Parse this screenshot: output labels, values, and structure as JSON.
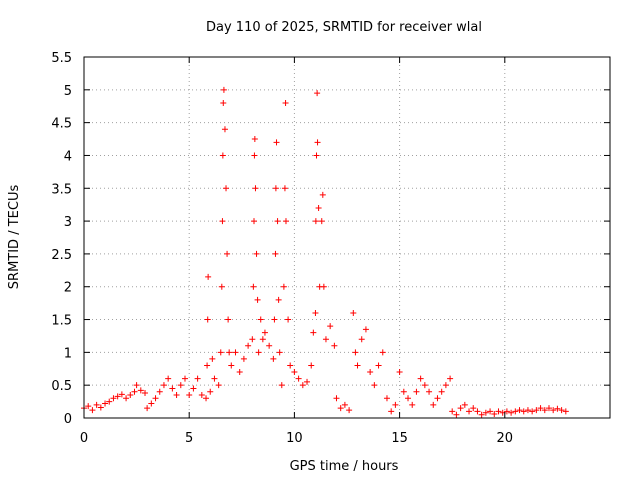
{
  "chart_data": {
    "type": "scatter",
    "title": "Day 110 of 2025, SRMTID for receiver wlal",
    "xlabel": "GPS time / hours",
    "ylabel": "SRMTID / TECUs",
    "xlim": [
      0,
      25
    ],
    "ylim": [
      0,
      5.5
    ],
    "x_ticks": [
      0,
      5,
      10,
      15,
      20
    ],
    "x_tick_labels": [
      "0",
      "5",
      "10",
      "15",
      "20"
    ],
    "y_ticks": [
      0,
      0.5,
      1,
      1.5,
      2,
      2.5,
      3,
      3.5,
      4,
      4.5,
      5,
      5.5
    ],
    "y_tick_labels": [
      "0",
      "0.5",
      "1",
      "1.5",
      "2",
      "2.5",
      "3",
      "3.5",
      "4",
      "4.5",
      "5",
      "5.5"
    ],
    "grid": true,
    "marker": "+",
    "series": [
      {
        "name": "SRMTID",
        "color": "#ff0000",
        "points": [
          [
            0.0,
            0.15
          ],
          [
            0.2,
            0.18
          ],
          [
            0.4,
            0.12
          ],
          [
            0.6,
            0.2
          ],
          [
            0.8,
            0.16
          ],
          [
            1.0,
            0.22
          ],
          [
            1.2,
            0.25
          ],
          [
            1.4,
            0.3
          ],
          [
            1.6,
            0.33
          ],
          [
            1.8,
            0.36
          ],
          [
            2.0,
            0.3
          ],
          [
            2.2,
            0.35
          ],
          [
            2.4,
            0.4
          ],
          [
            2.5,
            0.5
          ],
          [
            2.7,
            0.42
          ],
          [
            2.9,
            0.38
          ],
          [
            3.0,
            0.15
          ],
          [
            3.2,
            0.22
          ],
          [
            3.4,
            0.3
          ],
          [
            3.6,
            0.4
          ],
          [
            3.8,
            0.5
          ],
          [
            4.0,
            0.6
          ],
          [
            4.2,
            0.45
          ],
          [
            4.4,
            0.35
          ],
          [
            4.6,
            0.5
          ],
          [
            4.8,
            0.6
          ],
          [
            5.0,
            0.35
          ],
          [
            5.2,
            0.45
          ],
          [
            5.4,
            0.6
          ],
          [
            5.6,
            0.35
          ],
          [
            5.8,
            0.3
          ],
          [
            5.85,
            0.8
          ],
          [
            5.88,
            1.5
          ],
          [
            5.9,
            2.15
          ],
          [
            6.0,
            0.4
          ],
          [
            6.1,
            0.9
          ],
          [
            6.2,
            0.6
          ],
          [
            6.4,
            0.5
          ],
          [
            6.5,
            1.0
          ],
          [
            6.55,
            2.0
          ],
          [
            6.58,
            3.0
          ],
          [
            6.6,
            4.0
          ],
          [
            6.62,
            4.8
          ],
          [
            6.65,
            5.0
          ],
          [
            6.7,
            4.4
          ],
          [
            6.75,
            3.5
          ],
          [
            6.8,
            2.5
          ],
          [
            6.85,
            1.5
          ],
          [
            6.9,
            1.0
          ],
          [
            7.0,
            0.8
          ],
          [
            7.2,
            1.0
          ],
          [
            7.4,
            0.7
          ],
          [
            7.6,
            0.9
          ],
          [
            7.8,
            1.1
          ],
          [
            8.0,
            1.2
          ],
          [
            8.05,
            2.0
          ],
          [
            8.08,
            3.0
          ],
          [
            8.1,
            4.0
          ],
          [
            8.12,
            4.25
          ],
          [
            8.15,
            3.5
          ],
          [
            8.2,
            2.5
          ],
          [
            8.25,
            1.8
          ],
          [
            8.3,
            1.0
          ],
          [
            8.4,
            1.5
          ],
          [
            8.5,
            1.2
          ],
          [
            8.6,
            1.3
          ],
          [
            8.8,
            1.1
          ],
          [
            9.0,
            0.9
          ],
          [
            9.05,
            1.5
          ],
          [
            9.1,
            2.5
          ],
          [
            9.12,
            3.5
          ],
          [
            9.15,
            4.2
          ],
          [
            9.2,
            3.0
          ],
          [
            9.25,
            1.8
          ],
          [
            9.3,
            1.0
          ],
          [
            9.4,
            0.5
          ],
          [
            9.5,
            2.0
          ],
          [
            9.55,
            3.5
          ],
          [
            9.58,
            4.8
          ],
          [
            9.6,
            3.0
          ],
          [
            9.7,
            1.5
          ],
          [
            9.8,
            0.8
          ],
          [
            10.0,
            0.7
          ],
          [
            10.2,
            0.6
          ],
          [
            10.4,
            0.5
          ],
          [
            10.6,
            0.55
          ],
          [
            10.8,
            0.8
          ],
          [
            10.9,
            1.3
          ],
          [
            11.0,
            1.6
          ],
          [
            11.02,
            3.0
          ],
          [
            11.05,
            4.0
          ],
          [
            11.08,
            4.95
          ],
          [
            11.1,
            4.2
          ],
          [
            11.15,
            3.2
          ],
          [
            11.2,
            2.0
          ],
          [
            11.3,
            3.0
          ],
          [
            11.35,
            3.4
          ],
          [
            11.4,
            2.0
          ],
          [
            11.5,
            1.2
          ],
          [
            11.7,
            1.4
          ],
          [
            11.9,
            1.1
          ],
          [
            12.0,
            0.3
          ],
          [
            12.2,
            0.15
          ],
          [
            12.4,
            0.2
          ],
          [
            12.6,
            0.12
          ],
          [
            12.8,
            1.6
          ],
          [
            12.9,
            1.0
          ],
          [
            13.0,
            0.8
          ],
          [
            13.2,
            1.2
          ],
          [
            13.4,
            1.35
          ],
          [
            13.6,
            0.7
          ],
          [
            13.8,
            0.5
          ],
          [
            14.0,
            0.8
          ],
          [
            14.2,
            1.0
          ],
          [
            14.4,
            0.3
          ],
          [
            14.6,
            0.1
          ],
          [
            14.8,
            0.2
          ],
          [
            15.0,
            0.7
          ],
          [
            15.2,
            0.4
          ],
          [
            15.4,
            0.3
          ],
          [
            15.6,
            0.2
          ],
          [
            15.8,
            0.4
          ],
          [
            16.0,
            0.6
          ],
          [
            16.2,
            0.5
          ],
          [
            16.4,
            0.4
          ],
          [
            16.6,
            0.2
          ],
          [
            16.8,
            0.3
          ],
          [
            17.0,
            0.4
          ],
          [
            17.2,
            0.5
          ],
          [
            17.4,
            0.6
          ],
          [
            17.5,
            0.1
          ],
          [
            17.7,
            0.05
          ],
          [
            17.9,
            0.15
          ],
          [
            18.1,
            0.2
          ],
          [
            18.3,
            0.1
          ],
          [
            18.5,
            0.15
          ],
          [
            18.7,
            0.1
          ],
          [
            18.9,
            0.05
          ],
          [
            19.1,
            0.08
          ],
          [
            19.3,
            0.1
          ],
          [
            19.5,
            0.06
          ],
          [
            19.7,
            0.1
          ],
          [
            19.9,
            0.08
          ],
          [
            20.1,
            0.1
          ],
          [
            20.3,
            0.08
          ],
          [
            20.5,
            0.1
          ],
          [
            20.7,
            0.12
          ],
          [
            20.9,
            0.1
          ],
          [
            21.1,
            0.12
          ],
          [
            21.3,
            0.1
          ],
          [
            21.5,
            0.12
          ],
          [
            21.7,
            0.15
          ],
          [
            21.9,
            0.12
          ],
          [
            22.1,
            0.15
          ],
          [
            22.3,
            0.12
          ],
          [
            22.5,
            0.14
          ],
          [
            22.7,
            0.12
          ],
          [
            22.9,
            0.1
          ]
        ]
      }
    ]
  }
}
